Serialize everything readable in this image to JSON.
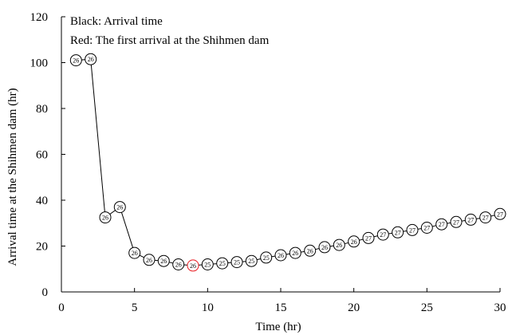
{
  "chart_data": {
    "type": "line",
    "xlabel": "Time (hr)",
    "ylabel": "Arrival time at the Shihmen dam (hr)",
    "xlim": [
      0,
      30
    ],
    "ylim": [
      0,
      120
    ],
    "xticks": [
      0,
      5,
      10,
      15,
      20,
      25,
      30
    ],
    "yticks": [
      0,
      20,
      40,
      60,
      80,
      100,
      120
    ],
    "grid": false,
    "annotations": [
      "Black: Arrival time",
      "Red: The first arrival at the Shihmen dam"
    ],
    "x": [
      1,
      2,
      3,
      4,
      5,
      6,
      7,
      8,
      9,
      10,
      11,
      12,
      13,
      14,
      15,
      16,
      17,
      18,
      19,
      20,
      21,
      22,
      23,
      24,
      25,
      26,
      27,
      28,
      29,
      30
    ],
    "series": [
      {
        "values": [
          101,
          101.5,
          32.5,
          37,
          17,
          14,
          13.5,
          12,
          11.5,
          12,
          12.5,
          13,
          13.5,
          15,
          16,
          17,
          18,
          19.5,
          20.5,
          22,
          23.5,
          25,
          26,
          27,
          28,
          29.5,
          30.5,
          31.5,
          32.5,
          34
        ],
        "marker_labels": [
          "26",
          "26",
          "26",
          "26",
          "26",
          "26",
          "26",
          "26",
          "26",
          "25",
          "25",
          "25",
          "25",
          "25",
          "26",
          "26",
          "26",
          "26",
          "26",
          "26",
          "27",
          "27",
          "27",
          "27",
          "27",
          "27",
          "27",
          "27",
          "27",
          "27"
        ],
        "highlight_index": 8,
        "color": "#000000",
        "highlight_color": "#e8191f"
      }
    ]
  }
}
